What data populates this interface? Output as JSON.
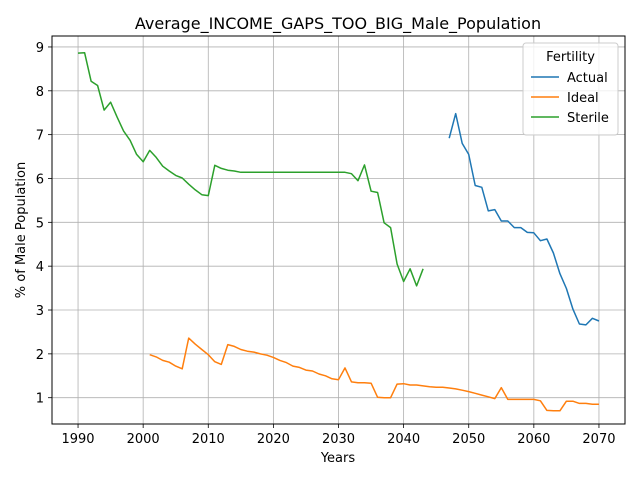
{
  "chart_data": {
    "type": "line",
    "title": "Average_INCOME_GAPS_TOO_BIG_Male_Population",
    "xlabel": "Years",
    "ylabel": "% of Male Population",
    "xlim": [
      1986,
      2074
    ],
    "ylim": [
      0.4,
      9.25
    ],
    "xticks": [
      1990,
      2000,
      2010,
      2020,
      2030,
      2040,
      2050,
      2060,
      2070
    ],
    "yticks": [
      1,
      2,
      3,
      4,
      5,
      6,
      7,
      8,
      9
    ],
    "grid": true,
    "legend": {
      "title": "Fertility",
      "placement": "top-right"
    },
    "series": [
      {
        "name": "Actual",
        "color": "#1f77b4",
        "x": [
          2047,
          2048,
          2049,
          2050,
          2051,
          2052,
          2053,
          2054,
          2055,
          2056,
          2057,
          2058,
          2059,
          2060,
          2061,
          2062,
          2063,
          2064,
          2065,
          2066,
          2067,
          2068,
          2069,
          2070
        ],
        "y": [
          6.92,
          7.48,
          6.8,
          6.55,
          5.84,
          5.8,
          5.26,
          5.29,
          5.03,
          5.03,
          4.88,
          4.88,
          4.77,
          4.76,
          4.58,
          4.62,
          4.3,
          3.83,
          3.49,
          3.02,
          2.68,
          2.66,
          2.81,
          2.75
        ]
      },
      {
        "name": "Ideal",
        "color": "#ff7f0e",
        "x": [
          2001,
          2002,
          2003,
          2004,
          2005,
          2006,
          2007,
          2008,
          2009,
          2010,
          2011,
          2012,
          2013,
          2014,
          2015,
          2016,
          2017,
          2018,
          2019,
          2020,
          2021,
          2022,
          2023,
          2024,
          2025,
          2026,
          2027,
          2028,
          2029,
          2030,
          2031,
          2032,
          2033,
          2034,
          2035,
          2036,
          2037,
          2038,
          2039,
          2040,
          2041,
          2042,
          2043,
          2044,
          2045,
          2046,
          2047,
          2048,
          2049,
          2050,
          2051,
          2052,
          2053,
          2054,
          2055,
          2056,
          2057,
          2058,
          2059,
          2060,
          2061,
          2062,
          2063,
          2064,
          2065,
          2066,
          2067,
          2068,
          2069,
          2070
        ],
        "y": [
          1.98,
          1.93,
          1.85,
          1.81,
          1.72,
          1.66,
          2.36,
          2.22,
          2.1,
          1.98,
          1.82,
          1.76,
          2.21,
          2.17,
          2.1,
          2.06,
          2.04,
          2.0,
          1.97,
          1.92,
          1.85,
          1.8,
          1.72,
          1.69,
          1.63,
          1.61,
          1.54,
          1.5,
          1.43,
          1.41,
          1.68,
          1.36,
          1.34,
          1.34,
          1.33,
          1.01,
          1.0,
          1.0,
          1.31,
          1.32,
          1.29,
          1.29,
          1.27,
          1.25,
          1.24,
          1.24,
          1.22,
          1.2,
          1.17,
          1.14,
          1.1,
          1.06,
          1.02,
          0.98,
          1.23,
          0.96,
          0.96,
          0.96,
          0.96,
          0.96,
          0.93,
          0.71,
          0.7,
          0.7,
          0.92,
          0.92,
          0.87,
          0.87,
          0.85,
          0.85
        ]
      },
      {
        "name": "Sterile",
        "color": "#2ca02c",
        "x": [
          1990,
          1991,
          1992,
          1993,
          1994,
          1995,
          1996,
          1997,
          1998,
          1999,
          2000,
          2001,
          2002,
          2003,
          2004,
          2005,
          2006,
          2007,
          2008,
          2009,
          2010,
          2011,
          2012,
          2013,
          2014,
          2015,
          2016,
          2017,
          2018,
          2019,
          2020,
          2021,
          2022,
          2023,
          2024,
          2025,
          2026,
          2027,
          2028,
          2029,
          2030,
          2031,
          2032,
          2033,
          2034,
          2035,
          2036,
          2037,
          2038,
          2039,
          2040,
          2041,
          2042,
          2043
        ],
        "y": [
          8.86,
          8.87,
          8.22,
          8.12,
          7.56,
          7.74,
          7.4,
          7.08,
          6.87,
          6.55,
          6.38,
          6.64,
          6.48,
          6.28,
          6.17,
          6.07,
          6.01,
          5.87,
          5.74,
          5.63,
          5.61,
          6.3,
          6.23,
          6.19,
          6.17,
          6.14,
          6.14,
          6.14,
          6.14,
          6.14,
          6.14,
          6.14,
          6.14,
          6.14,
          6.14,
          6.14,
          6.14,
          6.14,
          6.14,
          6.14,
          6.14,
          6.14,
          6.11,
          5.95,
          6.31,
          5.71,
          5.68,
          4.99,
          4.88,
          4.05,
          3.65,
          3.94,
          3.55,
          3.94
        ]
      }
    ]
  }
}
